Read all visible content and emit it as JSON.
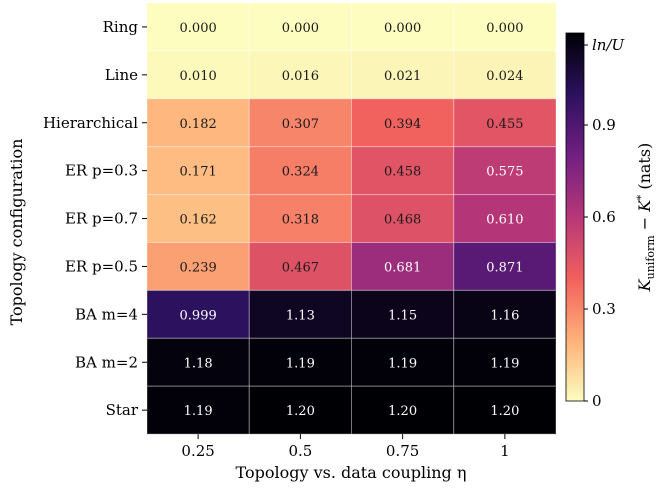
{
  "chart_data": {
    "type": "heatmap",
    "xlabel": "Topology vs. data coupling η",
    "ylabel": "Topology configuration",
    "x_ticks": [
      "0.25",
      "0.5",
      "0.75",
      "1"
    ],
    "y_ticks": [
      "Ring",
      "Line",
      "Hierarchical",
      "ER p=0.3",
      "ER p=0.7",
      "ER p=0.5",
      "BA m=4",
      "BA m=2",
      "Star"
    ],
    "values": [
      [
        0.0,
        0.0,
        0.0,
        0.0
      ],
      [
        0.01,
        0.016,
        0.021,
        0.024
      ],
      [
        0.182,
        0.307,
        0.394,
        0.455
      ],
      [
        0.171,
        0.324,
        0.458,
        0.575
      ],
      [
        0.162,
        0.318,
        0.468,
        0.61
      ],
      [
        0.239,
        0.467,
        0.681,
        0.871
      ],
      [
        0.999,
        1.13,
        1.15,
        1.16
      ],
      [
        1.18,
        1.19,
        1.19,
        1.19
      ],
      [
        1.19,
        1.2,
        1.2,
        1.2
      ]
    ],
    "cell_labels": [
      [
        "0.000",
        "0.000",
        "0.000",
        "0.000"
      ],
      [
        "0.010",
        "0.016",
        "0.021",
        "0.024"
      ],
      [
        "0.182",
        "0.307",
        "0.394",
        "0.455"
      ],
      [
        "0.171",
        "0.324",
        "0.458",
        "0.575"
      ],
      [
        "0.162",
        "0.318",
        "0.468",
        "0.610"
      ],
      [
        "0.239",
        "0.467",
        "0.681",
        "0.871"
      ],
      [
        "0.999",
        "1.13",
        "1.15",
        "1.16"
      ],
      [
        "1.18",
        "1.19",
        "1.19",
        "1.19"
      ],
      [
        "1.19",
        "1.20",
        "1.20",
        "1.20"
      ]
    ],
    "colormap": "magma_r",
    "colorbar": {
      "vmin": 0,
      "vmax": 1.2,
      "ticks": [
        0,
        0.3,
        0.6,
        0.9
      ],
      "tick_labels": [
        "0",
        "0.3",
        "0.6",
        "0.9"
      ],
      "top_label": "ln/U",
      "label": "K_uniform − K* (nats)"
    },
    "colors": {
      "magma_r": [
        "#fcfdbf",
        "#feb078",
        "#f1605d",
        "#b73779",
        "#721f81",
        "#2c115f",
        "#000004"
      ]
    },
    "grid": true
  }
}
